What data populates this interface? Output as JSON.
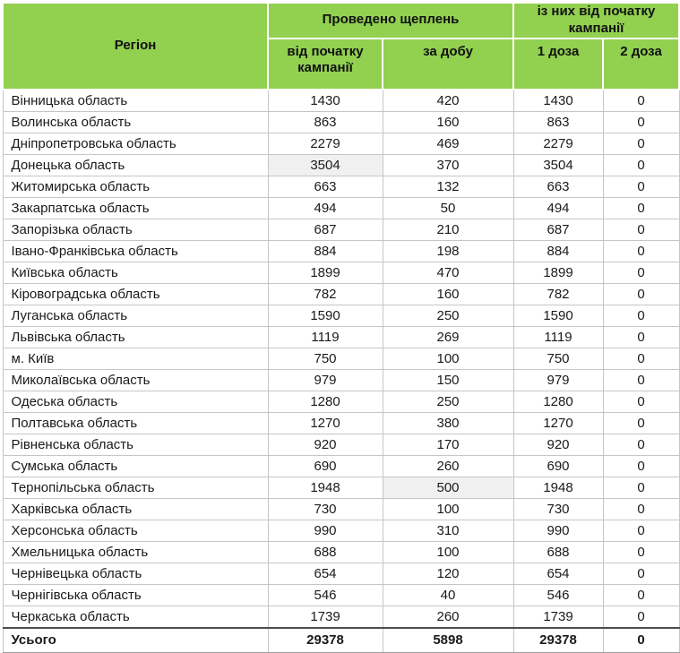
{
  "chart_data": {
    "type": "table",
    "title": "",
    "header": {
      "region": "Регіон",
      "group_conducted": "Проведено щеплень",
      "group_since_start": "із них від початку кампанії",
      "sub": [
        "від початку кампанії",
        "за добу",
        "1 доза",
        "2 доза"
      ]
    },
    "rows": [
      {
        "region": "Вінницька область",
        "values": [
          1430,
          420,
          1430,
          0
        ]
      },
      {
        "region": "Волинська область",
        "values": [
          863,
          160,
          863,
          0
        ]
      },
      {
        "region": "Дніпропетровська область",
        "values": [
          2279,
          469,
          2279,
          0
        ]
      },
      {
        "region": "Донецька область",
        "values": [
          3504,
          370,
          3504,
          0
        ]
      },
      {
        "region": "Житомирська область",
        "values": [
          663,
          132,
          663,
          0
        ]
      },
      {
        "region": "Закарпатська область",
        "values": [
          494,
          50,
          494,
          0
        ]
      },
      {
        "region": "Запорізька область",
        "values": [
          687,
          210,
          687,
          0
        ]
      },
      {
        "region": "Івано-Франківська область",
        "values": [
          884,
          198,
          884,
          0
        ]
      },
      {
        "region": "Київська область",
        "values": [
          1899,
          470,
          1899,
          0
        ]
      },
      {
        "region": "Кіровоградська область",
        "values": [
          782,
          160,
          782,
          0
        ]
      },
      {
        "region": "Луганська область",
        "values": [
          1590,
          250,
          1590,
          0
        ]
      },
      {
        "region": "Львівська область",
        "values": [
          1119,
          269,
          1119,
          0
        ]
      },
      {
        "region": "м. Київ",
        "values": [
          750,
          100,
          750,
          0
        ]
      },
      {
        "region": "Миколаївська область",
        "values": [
          979,
          150,
          979,
          0
        ]
      },
      {
        "region": "Одеська область",
        "values": [
          1280,
          250,
          1280,
          0
        ]
      },
      {
        "region": "Полтавська область",
        "values": [
          1270,
          380,
          1270,
          0
        ]
      },
      {
        "region": "Рівненська область",
        "values": [
          920,
          170,
          920,
          0
        ]
      },
      {
        "region": "Сумська область",
        "values": [
          690,
          260,
          690,
          0
        ]
      },
      {
        "region": "Тернопільська область",
        "values": [
          1948,
          500,
          1948,
          0
        ]
      },
      {
        "region": "Харківська область",
        "values": [
          730,
          100,
          730,
          0
        ]
      },
      {
        "region": "Херсонська область",
        "values": [
          990,
          310,
          990,
          0
        ]
      },
      {
        "region": "Хмельницька область",
        "values": [
          688,
          100,
          688,
          0
        ]
      },
      {
        "region": "Чернівецька область",
        "values": [
          654,
          120,
          654,
          0
        ]
      },
      {
        "region": "Чернігівська область",
        "values": [
          546,
          40,
          546,
          0
        ]
      },
      {
        "region": "Черкаська область",
        "values": [
          1739,
          260,
          1739,
          0
        ]
      }
    ],
    "total": {
      "label": "Усього",
      "values": [
        29378,
        5898,
        29378,
        0
      ]
    },
    "highlighted_cells": [
      {
        "row_index": 3,
        "col_index": 0
      },
      {
        "row_index": 18,
        "col_index": 1
      }
    ],
    "colors": {
      "header_green": "#92D050",
      "grid": "#C6C6C6",
      "cell_highlight": "#F0F0F0",
      "total_top_border": "#4D4D4D"
    }
  }
}
